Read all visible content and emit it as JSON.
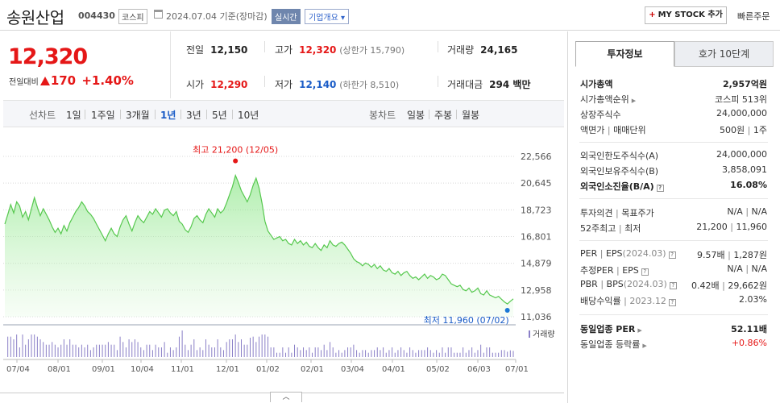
{
  "header": {
    "stock_name": "송원산업",
    "stock_code": "004430",
    "market": "코스피",
    "date": "2024.07.04 기준(장마감)",
    "realtime": "실시간",
    "company_overview": "기업개요",
    "my_stock_label": "MY STOCK 추가",
    "my_stock_plus": "+",
    "quick_order": "빠른주문"
  },
  "price": {
    "current": "12,320",
    "change_label": "전일대비",
    "change_value": "170",
    "change_pct": "+1.40%"
  },
  "summary": {
    "prev_close_label": "전일",
    "prev_close": "12,150",
    "high_label": "고가",
    "high": "12,320",
    "upper_limit": "(상한가 15,790)",
    "volume_label": "거래량",
    "volume": "24,165",
    "open_label": "시가",
    "open": "12,290",
    "low_label": "저가",
    "low": "12,140",
    "lower_limit": "(하한가 8,510)",
    "amount_label": "거래대금",
    "amount": "294 백만"
  },
  "period_bar": {
    "line_label": "선차트",
    "line_periods": [
      "1일",
      "1주일",
      "3개월",
      "1년",
      "3년",
      "5년",
      "10년"
    ],
    "selected": "1년",
    "candle_label": "봉차트",
    "candle_periods": [
      "일봉",
      "주봉",
      "월봉"
    ]
  },
  "chart_data": {
    "type": "area",
    "y_ticks": [
      "22,566",
      "20,645",
      "18,723",
      "16,801",
      "14,879",
      "12,958",
      "11,036"
    ],
    "ylim": [
      11036,
      22566
    ],
    "x_ticks": [
      "07/04",
      "08/01",
      "09/01",
      "10/04",
      "11/01",
      "12/01",
      "01/02",
      "02/01",
      "03/04",
      "04/01",
      "05/02",
      "06/03",
      "07/01"
    ],
    "max_label": "최고 21,200 (12/05)",
    "min_label": "최저 11,960 (07/02)",
    "volume_legend": "거래량",
    "series": [
      {
        "values": [
          17700,
          18400,
          19100,
          18500,
          19300,
          19000,
          18200,
          18600,
          18000,
          18800,
          19600,
          18900,
          18300,
          18800,
          18400,
          18000,
          17500,
          17100,
          17400,
          17000,
          17600,
          17200,
          17800,
          18200,
          18600,
          18900,
          19300,
          19000,
          18600,
          18400,
          18100,
          17700,
          17300,
          16900,
          16500,
          17000,
          17400,
          17000,
          16800,
          17500,
          18000,
          18300,
          17700,
          17200,
          17800,
          18300,
          18000,
          17800,
          18200,
          18600,
          18400,
          18800,
          18500,
          18200,
          18700,
          18800,
          18500,
          18300,
          18600,
          17900,
          17700,
          17300,
          17100,
          17500,
          18100,
          18300,
          18000,
          17800,
          18400,
          18800,
          18500,
          18200,
          18800,
          18500,
          18700,
          19200,
          19800,
          20400,
          21200,
          20700,
          20100,
          19700,
          19300,
          19800,
          20500,
          21000,
          20300,
          19200,
          17900,
          17200,
          16900,
          16600,
          16700,
          16800,
          16500,
          16600,
          16300,
          16200,
          16600,
          16300,
          16500,
          16200,
          16400,
          16100,
          16000,
          16300,
          16000,
          15800,
          16200,
          16000,
          16500,
          16200,
          16100,
          16300,
          16400,
          16200,
          15900,
          15600,
          15200,
          15000,
          14900,
          14700,
          14900,
          14800,
          14600,
          14800,
          14500,
          14700,
          14400,
          14300,
          14500,
          14200,
          14100,
          14300,
          14000,
          14200,
          14300,
          14000,
          13800,
          13900,
          13700,
          13900,
          14100,
          13800,
          14000,
          13900,
          13700,
          13800,
          14100,
          14000,
          13700,
          13400,
          13300,
          13200,
          13300,
          13000,
          12900,
          13100,
          12800,
          12900,
          13100,
          12700,
          12600,
          12900,
          12600,
          12500,
          12400,
          12500,
          12300,
          12100,
          11960,
          12150,
          12320
        ]
      }
    ]
  },
  "invest_tabs": {
    "active": "투자정보",
    "other": "호가 10단계"
  },
  "invest_info": {
    "market_cap_label": "시가총액",
    "market_cap": "2,957억원",
    "rank_label": "시가총액순위",
    "rank": "코스피 513위",
    "shares_label": "상장주식수",
    "shares": "24,000,000",
    "par_label": "액면가",
    "par_sep": "매매단위",
    "par": "500원",
    "unit": "1주",
    "foreign_limit_label": "외국인한도주식수(A)",
    "foreign_limit": "24,000,000",
    "foreign_hold_label": "외국인보유주식수(B)",
    "foreign_hold": "3,858,091",
    "foreign_ratio_label": "외국인소진율(B/A)",
    "foreign_ratio": "16.08%",
    "opinion_label": "투자의견",
    "target_label": "목표주가",
    "opinion": "N/A",
    "target": "N/A",
    "w52_label": "52주최고",
    "w52_low_label": "최저",
    "w52_high": "21,200",
    "w52_low": "11,960",
    "per_label": "PER",
    "eps_label": "EPS",
    "eps_period": "(2024.03)",
    "per": "9.57배",
    "eps": "1,287원",
    "est_per_label": "추정PER",
    "est_eps_label": "EPS",
    "est_per": "N/A",
    "est_eps": "N/A",
    "pbr_label": "PBR",
    "bps_label": "BPS",
    "bps_period": "(2024.03)",
    "pbr": "0.42배",
    "bps": "29,662원",
    "div_label": "배당수익률",
    "div_period": "2023.12",
    "div": "2.03%",
    "ind_per_label": "동일업종 PER",
    "ind_per": "52.11배",
    "ind_chg_label": "동일업종 등락률",
    "ind_chg": "+0.86%"
  },
  "colors": {
    "up": "#e51717",
    "down": "#1a5cc7",
    "area_top": "#7ee37a",
    "area_line": "#56c84e"
  }
}
